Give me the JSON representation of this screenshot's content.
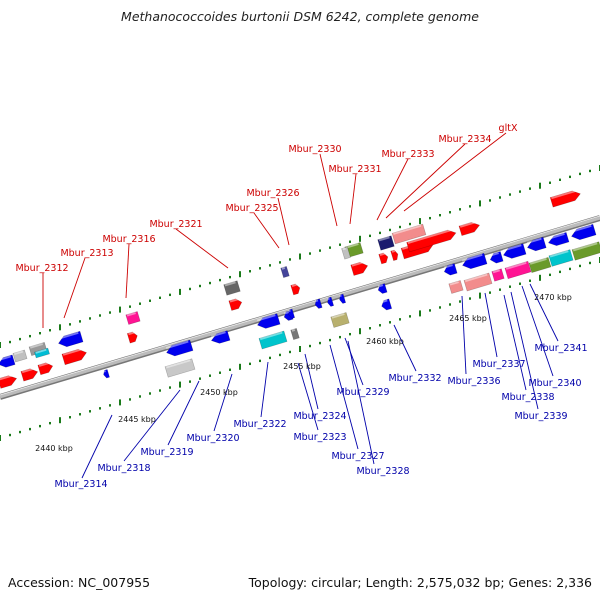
{
  "title": "Methanococcoides burtonii DSM 6242, complete genome",
  "footer": {
    "accession": "Accession: NC_007955",
    "topology": "Topology: circular; Length: 2,575,032 bp; Genes: 2,336"
  },
  "colors": {
    "forward_label": "#cc0000",
    "reverse_label": "#0000aa",
    "forward_cds": "#ff0000",
    "reverse_cds": "#0000ee",
    "backbone": "#888888",
    "tick": "#1a7a1a"
  },
  "kbp_labels": [
    "2440 kbp",
    "2445 kbp",
    "2450 kbp",
    "2455 kbp",
    "2460 kbp",
    "2465 kbp",
    "2470 kbp"
  ],
  "top_labels": [
    "Mbur_2312",
    "Mbur_2313",
    "Mbur_2316",
    "Mbur_2321",
    "Mbur_2325",
    "Mbur_2326",
    "Mbur_2330",
    "Mbur_2331",
    "Mbur_2333",
    "Mbur_2334",
    "gltX"
  ],
  "bottom_labels": [
    "Mbur_2314",
    "Mbur_2318",
    "Mbur_2319",
    "Mbur_2320",
    "Mbur_2322",
    "Mbur_2323",
    "Mbur_2324",
    "Mbur_2327",
    "Mbur_2328",
    "Mbur_2329",
    "Mbur_2332",
    "Mbur_2336",
    "Mbur_2337",
    "Mbur_2338",
    "Mbur_2339",
    "Mbur_2340",
    "Mbur_2341"
  ]
}
